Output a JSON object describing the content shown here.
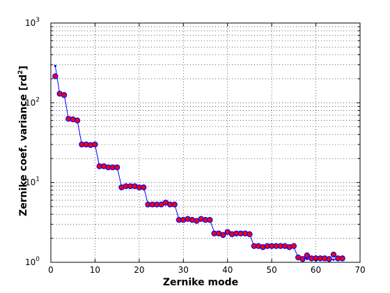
{
  "chart_data": {
    "type": "scatter",
    "title": "",
    "xlabel": "Zernike mode",
    "ylabel_prefix": "Zernike coef. variance [rd",
    "ylabel_sup": "2",
    "ylabel_suffix": "]",
    "xlim": [
      0,
      70
    ],
    "ylim": [
      1,
      1000
    ],
    "yscale": "log",
    "grid": true,
    "x_ticks": [
      "0",
      "10",
      "20",
      "30",
      "40",
      "50",
      "60",
      "70"
    ],
    "y_tick_base": "10",
    "y_tick_exponents": [
      "0",
      "1",
      "2",
      "3"
    ],
    "series": [
      {
        "marker": "blue-line-with-dots",
        "color": "#0000ff",
        "x": [
          1,
          2,
          3,
          4,
          5,
          6,
          7,
          8,
          9,
          10,
          11,
          12,
          13,
          14,
          15,
          16,
          17,
          18,
          19,
          20,
          21,
          22,
          23,
          24,
          25,
          26,
          27,
          28,
          29,
          30,
          31,
          32,
          33,
          34,
          35,
          36,
          37,
          38,
          39,
          40,
          41,
          42,
          43,
          44,
          45,
          46,
          47,
          48,
          49,
          50,
          51,
          52,
          53,
          54,
          55,
          56,
          57,
          58,
          59,
          60,
          61,
          62,
          63,
          64,
          65,
          66
        ],
        "y": [
          290,
          130,
          130,
          62,
          61,
          60,
          30,
          30,
          30,
          30,
          16,
          16,
          16,
          15.5,
          15.5,
          9,
          9,
          9,
          9,
          8.8,
          8.8,
          5.4,
          5.4,
          5.4,
          5.4,
          5.3,
          5.3,
          5.3,
          3.5,
          3.5,
          3.5,
          3.4,
          3.4,
          3.4,
          3.4,
          3.4,
          2.4,
          2.35,
          2.3,
          2.3,
          2.3,
          2.3,
          2.3,
          2.3,
          2.25,
          1.6,
          1.6,
          1.6,
          1.6,
          1.6,
          1.6,
          1.6,
          1.6,
          1.6,
          1.55,
          1.15,
          1.15,
          1.1,
          1.1,
          1.1,
          1.1,
          1.1,
          1.1,
          1.08,
          1.1,
          1.08
        ]
      },
      {
        "marker": "red-circles",
        "color": "#ff0000",
        "x": [
          1,
          2,
          3,
          4,
          5,
          6,
          7,
          8,
          9,
          10,
          11,
          12,
          13,
          14,
          15,
          16,
          17,
          18,
          19,
          20,
          21,
          22,
          23,
          24,
          25,
          26,
          27,
          28,
          29,
          30,
          31,
          32,
          33,
          34,
          35,
          36,
          37,
          38,
          39,
          40,
          41,
          42,
          43,
          44,
          45,
          46,
          47,
          48,
          49,
          50,
          51,
          52,
          53,
          54,
          55,
          56,
          57,
          58,
          59,
          60,
          61,
          62,
          63,
          64,
          65,
          66
        ],
        "y": [
          215,
          130,
          125,
          63,
          62,
          60,
          30,
          30,
          29.5,
          30,
          16,
          16,
          15.5,
          15.5,
          15.5,
          8.7,
          9,
          9,
          9,
          8.7,
          8.7,
          5.3,
          5.3,
          5.3,
          5.3,
          5.6,
          5.3,
          5.3,
          3.4,
          3.4,
          3.5,
          3.4,
          3.3,
          3.5,
          3.4,
          3.4,
          2.3,
          2.3,
          2.2,
          2.4,
          2.25,
          2.3,
          2.3,
          2.3,
          2.25,
          1.6,
          1.6,
          1.55,
          1.6,
          1.6,
          1.6,
          1.6,
          1.6,
          1.55,
          1.6,
          1.15,
          1.1,
          1.22,
          1.12,
          1.12,
          1.12,
          1.12,
          1.1,
          1.25,
          1.12,
          1.12
        ]
      }
    ]
  }
}
